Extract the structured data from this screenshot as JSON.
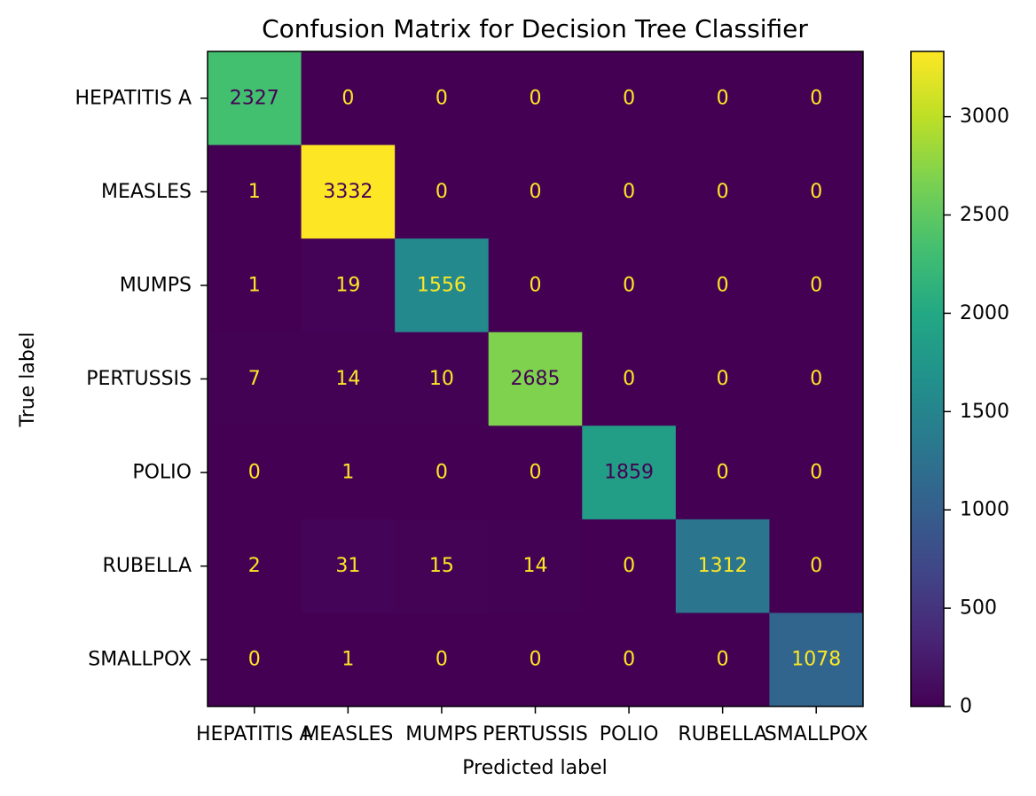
{
  "chart_data": {
    "type": "heatmap",
    "title": "Confusion Matrix for Decision Tree Classifier",
    "xlabel": "Predicted label",
    "ylabel": "True label",
    "x_categories": [
      "HEPATITIS A",
      "MEASLES",
      "MUMPS",
      "PERTUSSIS",
      "POLIO",
      "RUBELLA",
      "SMALLPOX"
    ],
    "y_categories": [
      "HEPATITIS A",
      "MEASLES",
      "MUMPS",
      "PERTUSSIS",
      "POLIO",
      "RUBELLA",
      "SMALLPOX"
    ],
    "matrix": [
      [
        2327,
        0,
        0,
        0,
        0,
        0,
        0
      ],
      [
        1,
        3332,
        0,
        0,
        0,
        0,
        0
      ],
      [
        1,
        19,
        1556,
        0,
        0,
        0,
        0
      ],
      [
        7,
        14,
        10,
        2685,
        0,
        0,
        0
      ],
      [
        0,
        1,
        0,
        0,
        1859,
        0,
        0
      ],
      [
        2,
        31,
        15,
        14,
        0,
        1312,
        0
      ],
      [
        0,
        1,
        0,
        0,
        0,
        0,
        1078
      ]
    ],
    "colormap": "viridis",
    "colorbar": {
      "range": [
        0,
        3332
      ],
      "ticks": [
        0,
        500,
        1000,
        1500,
        2000,
        2500,
        3000
      ]
    },
    "grid": false
  }
}
